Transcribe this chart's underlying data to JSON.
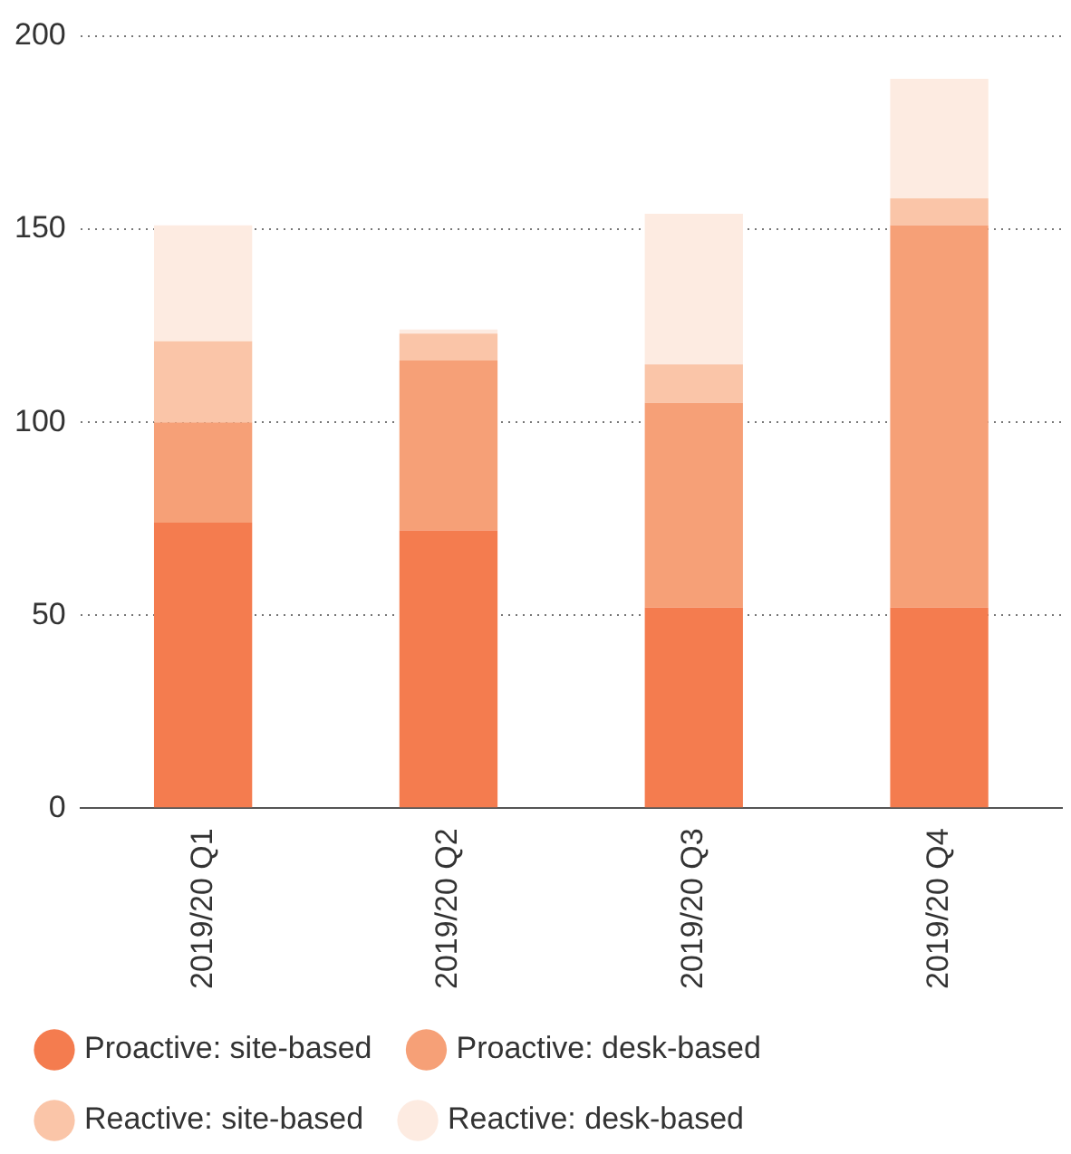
{
  "chart_data": {
    "type": "bar",
    "stacked": true,
    "categories": [
      "2019/20 Q1",
      "2019/20 Q2",
      "2019/20 Q3",
      "2019/20 Q4"
    ],
    "series": [
      {
        "name": "Proactive: site-based",
        "color": "#f47c4f",
        "values": [
          74,
          72,
          52,
          52
        ]
      },
      {
        "name": "Proactive: desk-based",
        "color": "#f6a077",
        "values": [
          26,
          44,
          53,
          99
        ]
      },
      {
        "name": "Reactive: site-based",
        "color": "#fac5a8",
        "values": [
          21,
          7,
          10,
          7
        ]
      },
      {
        "name": "Reactive: desk-based",
        "color": "#fdebe1",
        "values": [
          30,
          1,
          39,
          31
        ]
      }
    ],
    "ylim": [
      0,
      200
    ],
    "yticks": [
      0,
      50,
      100,
      150,
      200
    ],
    "grid": "y",
    "legend": "bottom"
  }
}
